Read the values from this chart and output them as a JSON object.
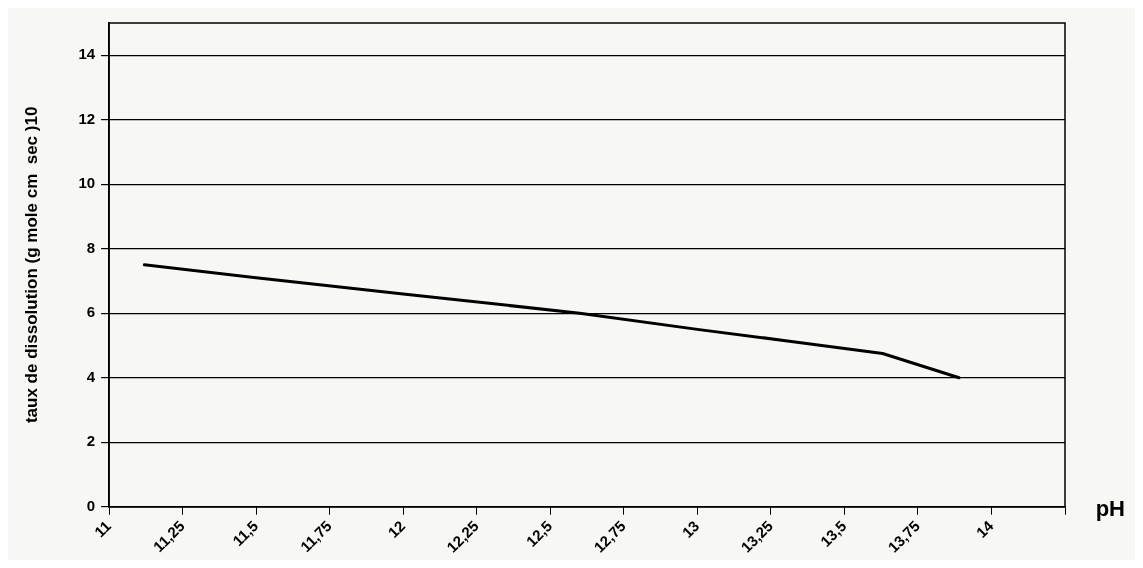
{
  "chart_data": {
    "type": "line",
    "xlabel": "pH",
    "ylabel": "taux de dissolution (g mole cm  sec )10",
    "x": [
      11.12,
      11.5,
      12,
      12.6,
      13,
      13.3,
      13.63,
      13.89
    ],
    "series": [
      {
        "color": "#000000",
        "values": [
          7.5,
          7.1,
          6.6,
          6.0,
          5.5,
          5.15,
          4.75,
          4.0
        ]
      }
    ],
    "xlim": [
      11,
      14.25
    ],
    "xticks": [
      {
        "value": 11,
        "label": "11"
      },
      {
        "value": 11.25,
        "label": "11,25"
      },
      {
        "value": 11.5,
        "label": "11,5"
      },
      {
        "value": 11.75,
        "label": "11,75"
      },
      {
        "value": 12,
        "label": "12"
      },
      {
        "value": 12.25,
        "label": "12,25"
      },
      {
        "value": 12.5,
        "label": "12,5"
      },
      {
        "value": 12.75,
        "label": "12,75"
      },
      {
        "value": 13,
        "label": "13"
      },
      {
        "value": 13.25,
        "label": "13,25"
      },
      {
        "value": 13.5,
        "label": "13,5"
      },
      {
        "value": 13.75,
        "label": "13,75"
      },
      {
        "value": 14,
        "label": "14"
      },
      {
        "value": 14.25,
        "label": null
      }
    ],
    "ylim": [
      0,
      15
    ],
    "yticks": [
      0,
      2,
      4,
      6,
      8,
      10,
      12,
      14
    ],
    "grid": "y",
    "legend": false,
    "marker": "none",
    "line_style": "solid"
  }
}
